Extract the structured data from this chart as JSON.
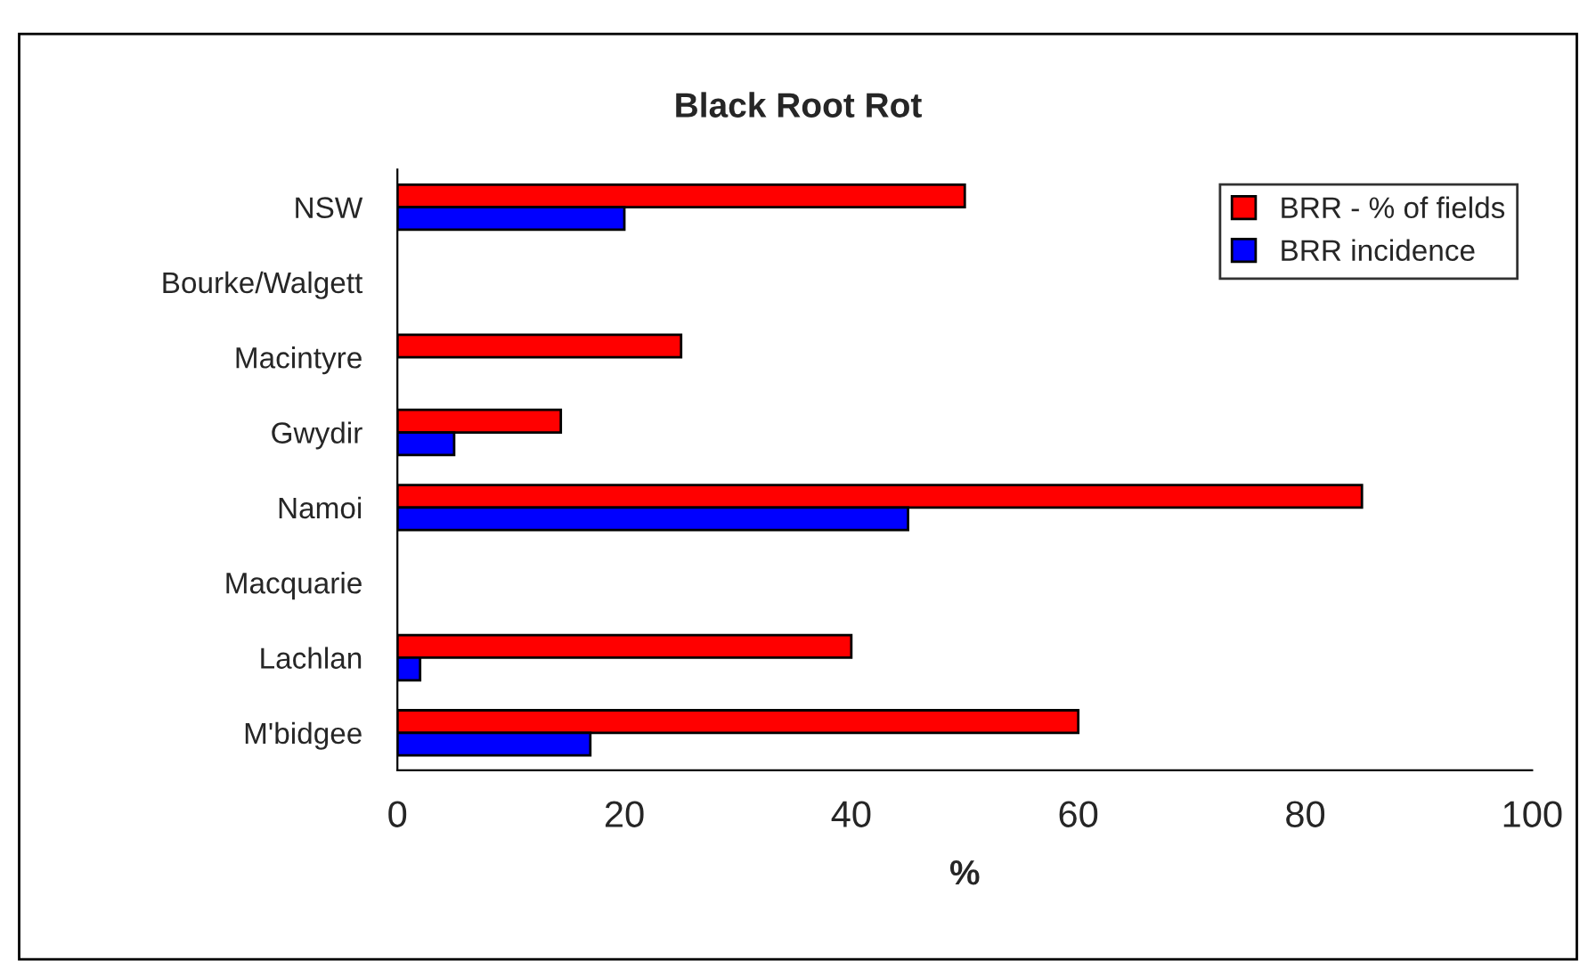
{
  "chart_data": {
    "type": "bar",
    "orientation": "horizontal",
    "title": "Black Root Rot",
    "xlabel": "%",
    "categories": [
      "NSW",
      "Bourke/Walgett",
      "Macintyre",
      "Gwydir",
      "Namoi",
      "Macquarie",
      "Lachlan",
      "M'bidgee"
    ],
    "series": [
      {
        "name": "BRR - % of fields",
        "color": "#ff0000",
        "values": [
          50,
          null,
          25,
          14.4,
          85,
          null,
          40,
          60
        ]
      },
      {
        "name": "BRR incidence",
        "color": "#0000ff",
        "values": [
          20,
          null,
          null,
          5,
          45,
          null,
          2,
          17
        ]
      }
    ],
    "xlim": [
      0,
      100
    ],
    "xticks": [
      0,
      20,
      40,
      60,
      80,
      100
    ],
    "grid": false,
    "legend": "top right"
  }
}
